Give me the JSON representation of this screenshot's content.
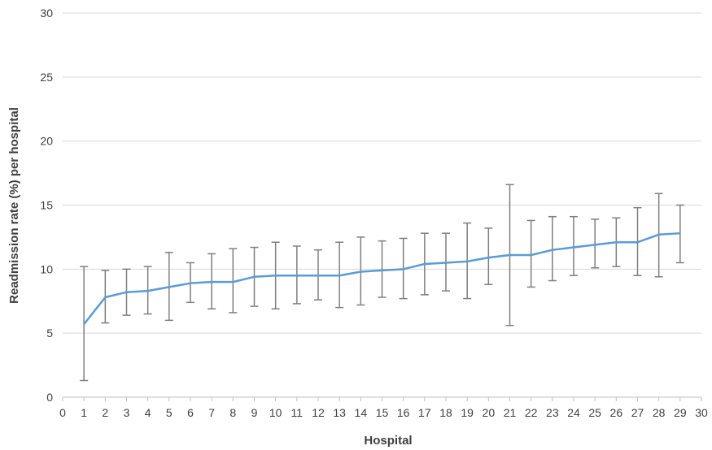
{
  "chart_data": {
    "type": "line",
    "title": "",
    "xlabel": "Hospital",
    "ylabel": "Readmission rate (%) per hospital",
    "xlim": [
      0,
      30
    ],
    "ylim": [
      0,
      30
    ],
    "x_ticks": [
      0,
      1,
      2,
      3,
      4,
      5,
      6,
      7,
      8,
      9,
      10,
      11,
      12,
      13,
      14,
      15,
      16,
      17,
      18,
      19,
      20,
      21,
      22,
      23,
      24,
      25,
      26,
      27,
      28,
      29,
      30
    ],
    "y_ticks": [
      0,
      5,
      10,
      15,
      20,
      25,
      30
    ],
    "grid": "horizontal",
    "legend": "none",
    "series": [
      {
        "color": "#5B9BD5",
        "x": [
          1,
          2,
          3,
          4,
          5,
          6,
          7,
          8,
          9,
          10,
          11,
          12,
          13,
          14,
          15,
          16,
          17,
          18,
          19,
          20,
          21,
          22,
          23,
          24,
          25,
          26,
          27,
          28,
          29
        ],
        "y": [
          5.7,
          7.8,
          8.2,
          8.3,
          8.6,
          8.9,
          9.0,
          9.0,
          9.4,
          9.5,
          9.5,
          9.5,
          9.5,
          9.8,
          9.9,
          10.0,
          10.4,
          10.5,
          10.6,
          10.9,
          11.1,
          11.1,
          11.5,
          11.7,
          11.9,
          12.1,
          12.1,
          12.7,
          12.8
        ],
        "error_low": [
          1.3,
          5.8,
          6.4,
          6.5,
          6.0,
          7.4,
          6.9,
          6.6,
          7.1,
          6.9,
          7.3,
          7.6,
          7.0,
          7.2,
          7.8,
          7.7,
          8.0,
          8.3,
          7.7,
          8.8,
          5.6,
          8.6,
          9.1,
          9.5,
          10.1,
          10.2,
          9.5,
          9.4,
          10.5
        ],
        "error_high": [
          10.2,
          9.9,
          10.0,
          10.2,
          11.3,
          10.5,
          11.2,
          11.6,
          11.7,
          12.1,
          11.8,
          11.5,
          12.1,
          12.5,
          12.2,
          12.4,
          12.8,
          12.8,
          13.6,
          13.2,
          16.6,
          13.8,
          14.1,
          14.1,
          13.9,
          14.0,
          14.8,
          15.9,
          15.0
        ]
      }
    ],
    "error_bar_color": "#7f7f7f"
  }
}
